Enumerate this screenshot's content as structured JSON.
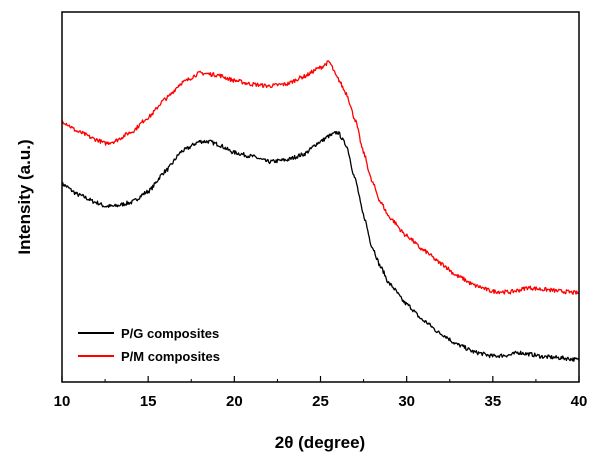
{
  "chart_data": {
    "type": "line",
    "title": "",
    "xlabel": "2θ  (degree)",
    "ylabel": "Intensity (a.u.)",
    "xlim": [
      10,
      40
    ],
    "ylim": [
      0,
      100
    ],
    "x_ticks": [
      "10",
      "15",
      "20",
      "25",
      "30",
      "35",
      "40"
    ],
    "y_ticks_labeled": false,
    "grid": false,
    "legend_position": "bottom-left",
    "series": [
      {
        "name": "P/G composites",
        "color": "#000000",
        "x": [
          10,
          11,
          12,
          12.5,
          13,
          14,
          15,
          16,
          17,
          18,
          18.5,
          19,
          20,
          21,
          22,
          23,
          24,
          25,
          25.5,
          26,
          26.5,
          27,
          27.5,
          28,
          28.5,
          29,
          30,
          31,
          32,
          33,
          34,
          35,
          36,
          36.5,
          37,
          38,
          39,
          40
        ],
        "values": [
          53.5,
          50.5,
          48.5,
          47.5,
          47.5,
          48.5,
          51.5,
          57.0,
          62.5,
          65.0,
          65.0,
          64.3,
          62.0,
          61.0,
          59.5,
          60.0,
          61.5,
          65.0,
          66.5,
          67.5,
          64.0,
          55.0,
          45.0,
          36.5,
          31.0,
          26.5,
          21.0,
          16.5,
          13.0,
          10.0,
          8.0,
          7.0,
          7.3,
          8.0,
          7.6,
          6.8,
          6.5,
          6.0
        ]
      },
      {
        "name": "P/M composites",
        "color": "#ff0000",
        "x": [
          10,
          11,
          12,
          12.5,
          13,
          14,
          15,
          16,
          17,
          18,
          19,
          20,
          21,
          22,
          23,
          24,
          25,
          25.5,
          26,
          26.5,
          27,
          27.5,
          28,
          28.5,
          29,
          30,
          31,
          32,
          33,
          34,
          35,
          36,
          36.5,
          37,
          38,
          39,
          40
        ],
        "values": [
          70.5,
          67.5,
          65.5,
          64.5,
          65.0,
          67.5,
          71.5,
          76.5,
          81.0,
          83.5,
          83.0,
          81.5,
          80.5,
          80.0,
          80.5,
          82.5,
          85.0,
          86.5,
          82.0,
          78.0,
          71.0,
          62.0,
          54.0,
          48.5,
          44.5,
          39.5,
          35.5,
          32.0,
          28.5,
          26.0,
          24.5,
          24.3,
          24.8,
          25.5,
          25.0,
          24.5,
          24.0
        ]
      }
    ]
  }
}
